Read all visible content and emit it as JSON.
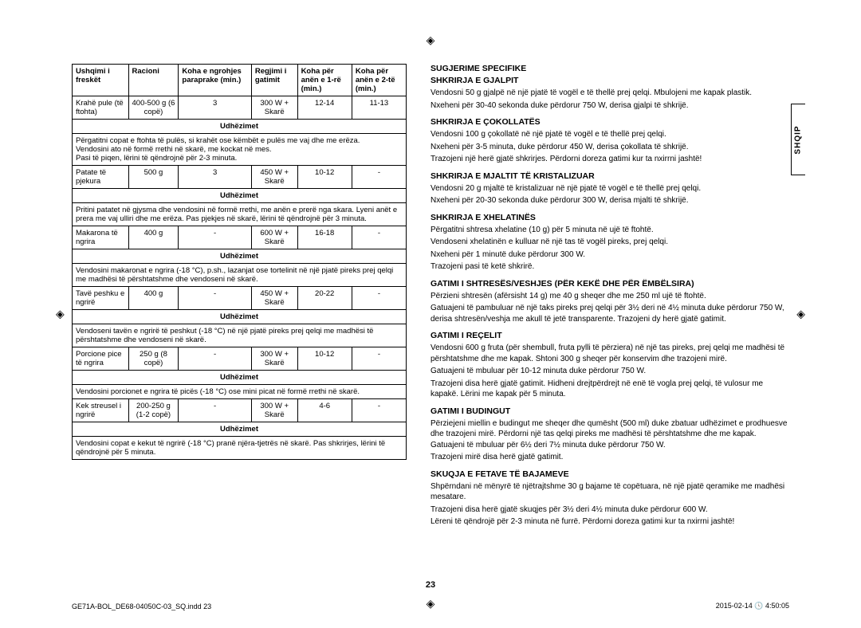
{
  "sideTab": "SHQIP",
  "pageNumber": "23",
  "footerLeft": "GE71A-BOL_DE68-04050C-03_SQ.indd   23",
  "footerRight": "2015-02-14   🕓 4:50:05",
  "regMark": "◈",
  "table": {
    "headers": [
      "Ushqimi i freskët",
      "Racioni",
      "Koha e ngrohjes paraprake (min.)",
      "Regjimi i gatimit",
      "Koha për anën e 1-rë (min.)",
      "Koha për anën e 2-të (min.)"
    ],
    "instrLabel": "Udhëzimet",
    "rows": [
      {
        "cells": [
          "Krahë pule (të ftohta)",
          "400-500 g (6 copë)",
          "3",
          "300 W + Skarë",
          "12-14",
          "11-13"
        ],
        "instr": "Përgatitni copat e ftohta të pulës, si krahët ose këmbët e pulës me vaj dhe me erëza.\nVendosini ato në formë rrethi në skarë, me kockat në mes.\nPasi të piqen, lërini të qëndrojnë për 2-3 minuta."
      },
      {
        "cells": [
          "Patate të pjekura",
          "500 g",
          "3",
          "450 W + Skarë",
          "10-12",
          "-"
        ],
        "instr": "Pritini patatet në gjysma dhe vendosini në formë rrethi, me anën e prerë nga skara. Lyeni anët e prera me vaj ulliri dhe me erëza. Pas pjekjes në skarë, lërini të qëndrojnë për 3 minuta."
      },
      {
        "cells": [
          "Makarona të ngrira",
          "400 g",
          "-",
          "600 W + Skarë",
          "16-18",
          "-"
        ],
        "instr": "Vendosini makaronat e ngrira (-18 °C), p.sh., lazanjat ose tortelinit në një pjatë pireks prej qelqi me madhësi të përshtatshme dhe vendoseni në skarë."
      },
      {
        "cells": [
          "Tavë peshku e ngrirë",
          "400 g",
          "-",
          "450 W + Skarë",
          "20-22",
          "-"
        ],
        "instr": "Vendoseni tavën e ngrirë të peshkut (-18 °C) në një pjatë pireks prej qelqi me madhësi të përshtatshme dhe vendoseni në skarë."
      },
      {
        "cells": [
          "Porcione pice të ngrira",
          "250 g (8 copë)",
          "-",
          "300 W + Skarë",
          "10-12",
          "-"
        ],
        "instr": "Vendosini porcionet e ngrira të picës (-18 °C) ose mini picat në formë rrethi në skarë."
      },
      {
        "cells": [
          "Kek streusel i ngrirë",
          "200-250 g (1-2 copë)",
          "-",
          "300 W + Skarë",
          "4-6",
          "-"
        ],
        "instr": "Vendosini copat e kekut të ngrirë (-18 °C) pranë njëra-tjetrës në skarë. Pas shkrirjes, lërini të qëndrojnë për 5 minuta."
      }
    ]
  },
  "right": {
    "mainTitle": "SUGJERIME SPECIFIKE",
    "sections": [
      {
        "title": "SHKRIRJA E GJALPIT",
        "paras": [
          "Vendosni 50 g gjalpë në një pjatë të vogël e të thellë prej qelqi. Mbulojeni me kapak plastik.",
          "Nxeheni për 30-40 sekonda duke përdorur 750 W, derisa gjalpi të shkrijë."
        ]
      },
      {
        "title": "SHKRIRJA E ÇOKOLLATËS",
        "paras": [
          "Vendosni 100 g çokollatë në një pjatë të vogël e të thellë prej qelqi.",
          "Nxeheni për 3-5 minuta, duke përdorur 450 W, derisa çokollata të shkrijë.",
          "Trazojeni një herë gjatë shkrirjes. Përdorni doreza gatimi kur ta nxirrni jashtë!"
        ]
      },
      {
        "title": "SHKRIRJA E MJALTIT TË KRISTALIZUAR",
        "paras": [
          "Vendosni 20 g mjaltë të kristalizuar në një pjatë të vogël e të thellë prej qelqi.",
          "Nxeheni për 20-30 sekonda duke përdorur 300 W, derisa mjalti të shkrijë."
        ]
      },
      {
        "title": "SHKRIRJA E XHELATINËS",
        "paras": [
          "Përgatitni shtresa xhelatine (10 g) për 5 minuta në ujë të ftohtë.",
          "Vendoseni xhelatinën e kulluar në një tas të vogël pireks, prej qelqi.",
          "Nxeheni për 1 minutë duke përdorur 300 W.",
          "Trazojeni pasi të ketë shkrirë."
        ]
      },
      {
        "title": "GATIMI I SHTRESËS/VESHJES (PËR KEKË DHE PËR ËMBËLSIRA)",
        "paras": [
          "Përzieni shtresën (afërsisht 14 g) me 40 g sheqer dhe me 250 ml ujë të ftohtë.",
          "Gatuajeni të pambuluar në një taks pireks prej qelqi për 3½ deri në 4½ minuta duke përdorur 750 W, derisa shtresën/veshja me akull të jetë transparente. Trazojeni dy herë gjatë gatimit."
        ]
      },
      {
        "title": "GATIMI I REÇELIT",
        "paras": [
          "Vendosni 600 g fruta (për shembull, fruta pylli të përziera) në një tas pireks, prej qelqi me madhësi të përshtatshme dhe me kapak. Shtoni 300 g sheqer për konservim dhe trazojeni mirë.",
          "Gatuajeni të mbuluar për 10-12 minuta duke përdorur 750 W.",
          "Trazojeni disa herë gjatë gatimit. Hidheni drejtpërdrejt në enë të vogla prej qelqi, të vulosur me kapakë. Lërini me kapak për 5 minuta."
        ]
      },
      {
        "title": "GATIMI I BUDINGUT",
        "paras": [
          "Përziejeni miellin e budingut me sheqer dhe qumësht (500 ml) duke zbatuar udhëzimet e prodhuesve dhe trazojeni mirë. Përdorni një tas qelqi pireks me madhësi të përshtatshme dhe me kapak. Gatuajeni të mbuluar për 6½ deri 7½ minuta duke përdorur 750 W.",
          "Trazojeni mirë disa herë gjatë gatimit."
        ]
      },
      {
        "title": "SKUQJA E FETAVE TË BAJAMEVE",
        "paras": [
          "Shpërndani në mënyrë të njëtrajtshme 30 g bajame të copëtuara, në një pjatë qeramike me madhësi mesatare.",
          "Trazojeni disa herë gjatë skuqjes për 3½ deri 4½ minuta duke përdorur 600 W.",
          "Lëreni të qëndrojë për 2-3 minuta në furrë. Përdorni doreza gatimi kur ta nxirrni jashtë!"
        ]
      }
    ]
  }
}
